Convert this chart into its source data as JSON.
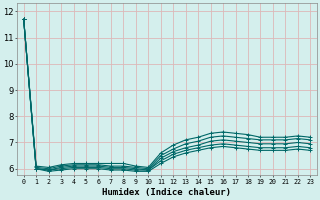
{
  "xlabel": "Humidex (Indice chaleur)",
  "ylabel": "",
  "background_color": "#d4efed",
  "grid_color": "#ddb8b8",
  "line_color": "#006868",
  "xlim": [
    -0.5,
    23.5
  ],
  "ylim": [
    5.75,
    12.3
  ],
  "yticks": [
    6,
    7,
    8,
    9,
    10,
    11,
    12
  ],
  "xtick_labels": [
    "0",
    "1",
    "2",
    "3",
    "4",
    "5",
    "6",
    "7",
    "8",
    "9",
    "10",
    "11",
    "12",
    "13",
    "14",
    "15",
    "16",
    "17",
    "18",
    "19",
    "20",
    "21",
    "22",
    "23"
  ],
  "series": [
    [
      11.7,
      6.1,
      6.05,
      6.15,
      6.2,
      6.2,
      6.2,
      6.2,
      6.2,
      6.1,
      6.05,
      6.6,
      6.9,
      7.1,
      7.2,
      7.35,
      7.4,
      7.35,
      7.3,
      7.2,
      7.2,
      7.2,
      7.25,
      7.2
    ],
    [
      11.7,
      6.05,
      6.0,
      6.1,
      6.15,
      6.15,
      6.15,
      6.1,
      6.1,
      6.05,
      6.0,
      6.5,
      6.75,
      6.95,
      7.05,
      7.2,
      7.25,
      7.2,
      7.15,
      7.1,
      7.1,
      7.1,
      7.15,
      7.1
    ],
    [
      11.7,
      6.0,
      5.95,
      6.05,
      6.1,
      6.1,
      6.1,
      6.05,
      6.05,
      6.0,
      5.95,
      6.4,
      6.65,
      6.8,
      6.9,
      7.05,
      7.1,
      7.05,
      7.0,
      6.95,
      6.95,
      6.95,
      7.0,
      6.95
    ],
    [
      11.7,
      6.0,
      5.95,
      6.0,
      6.05,
      6.05,
      6.05,
      6.0,
      6.0,
      5.95,
      5.95,
      6.3,
      6.55,
      6.7,
      6.8,
      6.9,
      6.95,
      6.9,
      6.85,
      6.8,
      6.8,
      6.8,
      6.85,
      6.8
    ],
    [
      11.7,
      6.0,
      5.9,
      5.95,
      6.0,
      6.0,
      6.0,
      5.95,
      5.95,
      5.9,
      5.9,
      6.2,
      6.45,
      6.6,
      6.7,
      6.8,
      6.85,
      6.8,
      6.75,
      6.7,
      6.7,
      6.7,
      6.75,
      6.7
    ]
  ],
  "xlabel_fontsize": 6.5,
  "ytick_fontsize": 6,
  "xtick_fontsize": 4.8,
  "line_width": 0.8,
  "marker_size": 2.5
}
